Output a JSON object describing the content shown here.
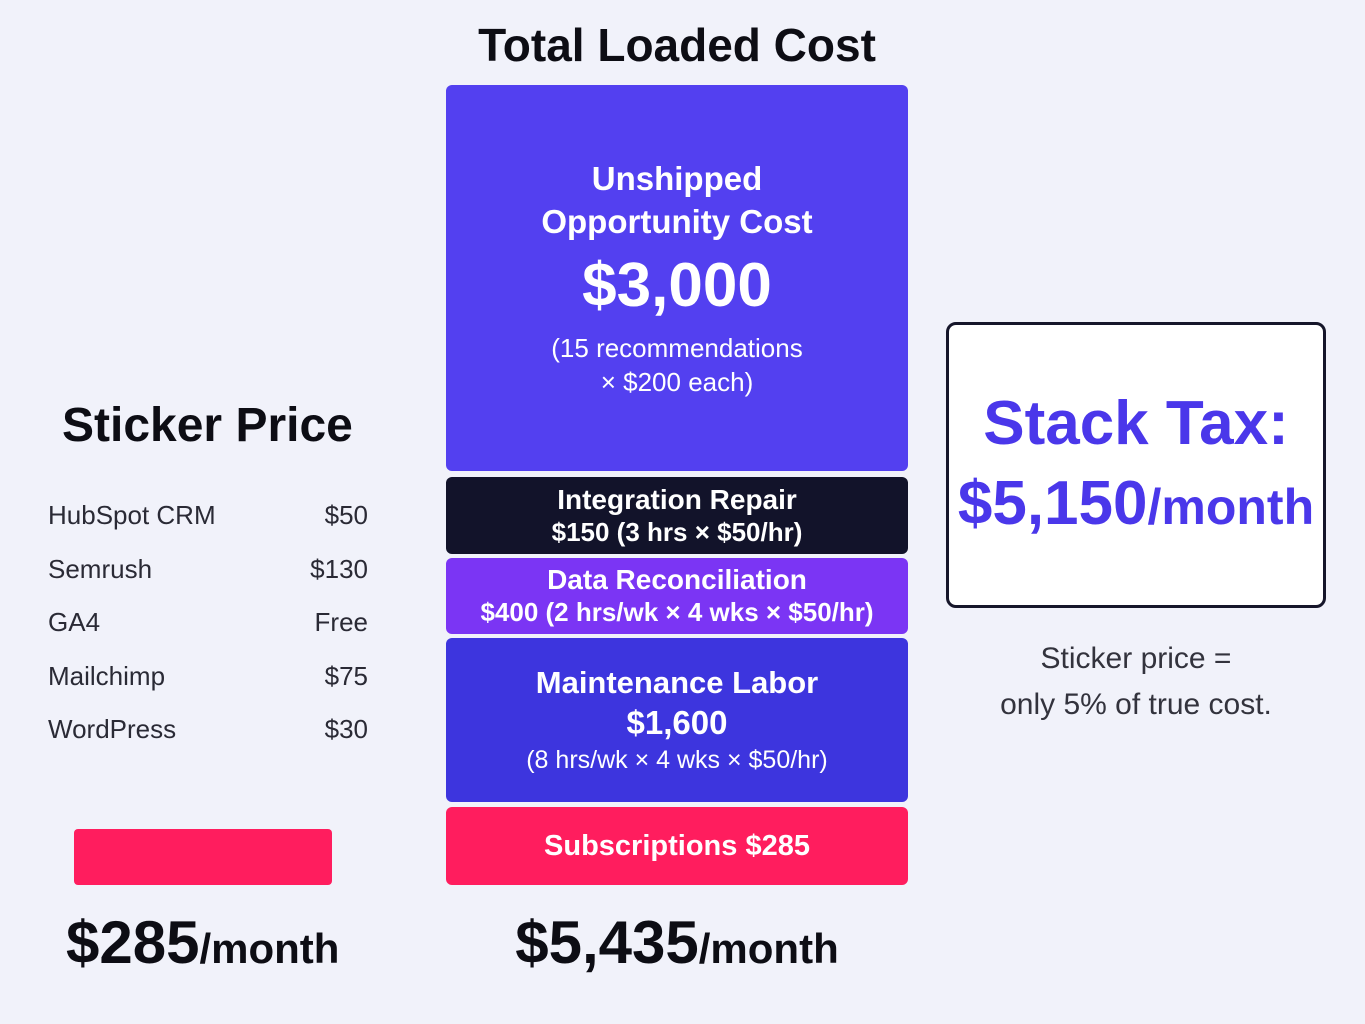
{
  "center": {
    "title": "Total Loaded Cost",
    "opportunity": {
      "title_line1": "Unshipped",
      "title_line2": "Opportunity Cost",
      "amount": "$3,000",
      "detail_line1": "(15 recommendations",
      "detail_line2": "× $200 each)"
    },
    "integration": {
      "title": "Integration Repair",
      "detail": "$150 (3 hrs × $50/hr)"
    },
    "reconciliation": {
      "title": "Data Reconciliation",
      "detail": "$400 (2 hrs/wk × 4 wks × $50/hr)"
    },
    "maintenance": {
      "title": "Maintenance Labor",
      "amount": "$1,600",
      "detail": "(8 hrs/wk × 4 wks × $50/hr)"
    },
    "subscriptions": {
      "label": "Subscriptions $285"
    },
    "total_amount": "$5,435",
    "total_unit": "/month"
  },
  "sticker": {
    "title": "Sticker Price",
    "items": [
      {
        "name": "HubSpot CRM",
        "price": "$50"
      },
      {
        "name": "Semrush",
        "price": "$130"
      },
      {
        "name": "GA4",
        "price": "Free"
      },
      {
        "name": "Mailchimp",
        "price": "$75"
      },
      {
        "name": "WordPress",
        "price": "$30"
      }
    ],
    "total_amount": "$285",
    "total_unit": "/month"
  },
  "tax": {
    "label": "Stack Tax:",
    "amount": "$5,150",
    "unit": "/month",
    "note_line1": "Sticker price =",
    "note_line2": "only 5% of true cost."
  },
  "colors": {
    "opportunity": "#5340f0",
    "integration": "#12132a",
    "reconciliation": "#7b35f4",
    "maintenance": "#3d35de",
    "subscriptions": "#ff1d5e",
    "tax_accent": "#4a37ea"
  }
}
